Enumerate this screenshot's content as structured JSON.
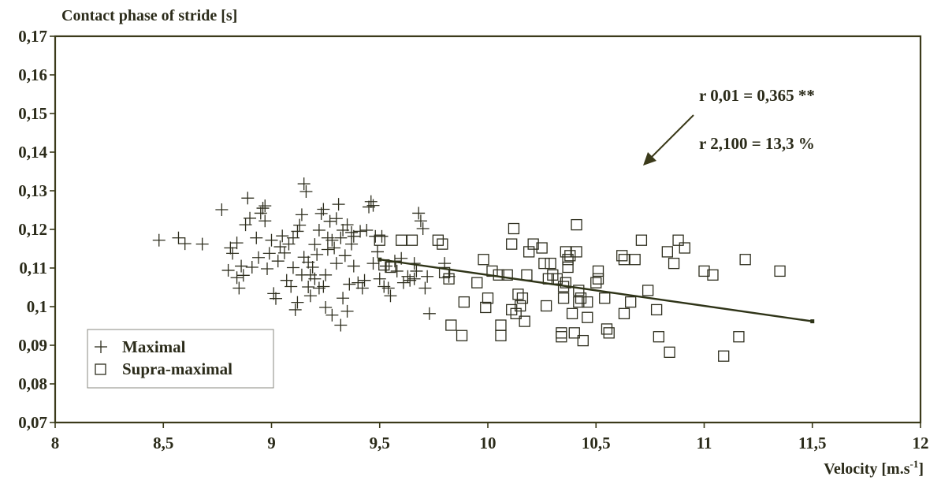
{
  "colors": {
    "frame": "#3b3a1a",
    "mark": "#2e2e1e",
    "trend": "#2f3418",
    "text": "#2b2b1a"
  },
  "chart_data": {
    "type": "scatter",
    "ylabel": "Contact phase of stride [s]",
    "xlabel_main": "Velocity [m.s",
    "xlabel_sup": "-1",
    "xlabel_end": "]",
    "xlim": [
      8,
      12
    ],
    "ylim": [
      0.07,
      0.17
    ],
    "x_ticks": [
      8,
      8.5,
      9,
      9.5,
      10,
      10.5,
      11,
      11.5,
      12
    ],
    "x_tick_labels": [
      "8",
      "8,5",
      "9",
      "9,5",
      "10",
      "10,5",
      "11",
      "11,5",
      "12"
    ],
    "y_ticks": [
      0.07,
      0.08,
      0.09,
      0.1,
      0.11,
      0.12,
      0.13,
      0.14,
      0.15,
      0.16,
      0.17
    ],
    "y_tick_labels": [
      "0,07",
      "0,08",
      "0,09",
      "0,1",
      "0,11",
      "0,12",
      "0,13",
      "0,14",
      "0,15",
      "0,16",
      "0,17"
    ],
    "grid": false,
    "legend_position": "bottom-left",
    "annotations": [
      "r 0,01 = 0,365 **",
      "r 2,100 = 13,3  %"
    ],
    "trend_line": {
      "x": [
        9.5,
        11.5
      ],
      "y": [
        0.1122,
        0.0962
      ]
    },
    "series": [
      {
        "name": "Maximal",
        "marker": "plus",
        "points": [
          [
            8.48,
            0.1172
          ],
          [
            8.57,
            0.1178
          ],
          [
            8.6,
            0.1163
          ],
          [
            8.68,
            0.1162
          ],
          [
            8.77,
            0.1251
          ],
          [
            8.8,
            0.1094
          ],
          [
            8.81,
            0.1152
          ],
          [
            8.82,
            0.1138
          ],
          [
            8.84,
            0.1165
          ],
          [
            8.84,
            0.1075
          ],
          [
            8.85,
            0.1048
          ],
          [
            8.86,
            0.1105
          ],
          [
            8.87,
            0.1081
          ],
          [
            8.88,
            0.1212
          ],
          [
            8.89,
            0.1281
          ],
          [
            8.9,
            0.1229
          ],
          [
            8.91,
            0.1102
          ],
          [
            8.93,
            0.1178
          ],
          [
            8.94,
            0.1127
          ],
          [
            8.95,
            0.1242
          ],
          [
            8.96,
            0.1255
          ],
          [
            8.97,
            0.1261
          ],
          [
            8.97,
            0.1222
          ],
          [
            8.98,
            0.1098
          ],
          [
            8.99,
            0.1138
          ],
          [
            9.0,
            0.1172
          ],
          [
            9.01,
            0.1034
          ],
          [
            9.02,
            0.1021
          ],
          [
            9.03,
            0.1118
          ],
          [
            9.04,
            0.1155
          ],
          [
            9.05,
            0.1183
          ],
          [
            9.06,
            0.1139
          ],
          [
            9.07,
            0.1068
          ],
          [
            9.08,
            0.1162
          ],
          [
            9.09,
            0.1052
          ],
          [
            9.1,
            0.1178
          ],
          [
            9.1,
            0.1101
          ],
          [
            9.11,
            0.0992
          ],
          [
            9.12,
            0.1011
          ],
          [
            9.12,
            0.1195
          ],
          [
            9.13,
            0.1211
          ],
          [
            9.14,
            0.1238
          ],
          [
            9.14,
            0.1082
          ],
          [
            9.15,
            0.1128
          ],
          [
            9.15,
            0.1318
          ],
          [
            9.16,
            0.1298
          ],
          [
            9.17,
            0.1115
          ],
          [
            9.17,
            0.1051
          ],
          [
            9.18,
            0.1082
          ],
          [
            9.18,
            0.1028
          ],
          [
            9.19,
            0.1102
          ],
          [
            9.2,
            0.1072
          ],
          [
            9.2,
            0.1161
          ],
          [
            9.21,
            0.1135
          ],
          [
            9.22,
            0.1048
          ],
          [
            9.22,
            0.1198
          ],
          [
            9.23,
            0.1241
          ],
          [
            9.24,
            0.1252
          ],
          [
            9.24,
            0.1052
          ],
          [
            9.25,
            0.1082
          ],
          [
            9.25,
            0.0998
          ],
          [
            9.26,
            0.1178
          ],
          [
            9.26,
            0.1148
          ],
          [
            9.27,
            0.1221
          ],
          [
            9.28,
            0.0978
          ],
          [
            9.28,
            0.1172
          ],
          [
            9.29,
            0.1152
          ],
          [
            9.3,
            0.1112
          ],
          [
            9.3,
            0.1228
          ],
          [
            9.31,
            0.1265
          ],
          [
            9.32,
            0.1178
          ],
          [
            9.32,
            0.0952
          ],
          [
            9.33,
            0.1022
          ],
          [
            9.33,
            0.1198
          ],
          [
            9.34,
            0.1132
          ],
          [
            9.35,
            0.1212
          ],
          [
            9.35,
            0.0988
          ],
          [
            9.36,
            0.1058
          ],
          [
            9.37,
            0.1162
          ],
          [
            9.37,
            0.1192
          ],
          [
            9.38,
            0.1182
          ],
          [
            9.38,
            0.1105
          ],
          [
            9.4,
            0.1062
          ],
          [
            9.41,
            0.1195
          ],
          [
            9.42,
            0.1048
          ],
          [
            9.43,
            0.1068
          ],
          [
            9.44,
            0.1198
          ],
          [
            9.45,
            0.1258
          ],
          [
            9.46,
            0.1272
          ],
          [
            9.47,
            0.1262
          ],
          [
            9.47,
            0.1112
          ],
          [
            9.48,
            0.1182
          ],
          [
            9.49,
            0.1142
          ],
          [
            9.5,
            0.1072
          ],
          [
            9.51,
            0.1182
          ],
          [
            9.52,
            0.1052
          ],
          [
            9.53,
            0.1105
          ],
          [
            9.54,
            0.1048
          ],
          [
            9.55,
            0.1028
          ],
          [
            9.57,
            0.1118
          ],
          [
            9.58,
            0.1092
          ],
          [
            9.6,
            0.1125
          ],
          [
            9.61,
            0.1062
          ],
          [
            9.63,
            0.1078
          ],
          [
            9.64,
            0.1068
          ],
          [
            9.66,
            0.1112
          ],
          [
            9.66,
            0.1072
          ],
          [
            9.67,
            0.1092
          ],
          [
            9.68,
            0.1242
          ],
          [
            9.69,
            0.1222
          ],
          [
            9.7,
            0.1202
          ],
          [
            9.71,
            0.1048
          ],
          [
            9.72,
            0.1078
          ],
          [
            9.73,
            0.0982
          ],
          [
            9.8,
            0.1112
          ],
          [
            9.82,
            0.1078
          ]
        ]
      },
      {
        "name": "Supra-maximal",
        "marker": "square",
        "points": [
          [
            9.5,
            0.1172
          ],
          [
            9.52,
            0.1108
          ],
          [
            9.55,
            0.1102
          ],
          [
            9.6,
            0.1172
          ],
          [
            9.65,
            0.1172
          ],
          [
            9.77,
            0.1172
          ],
          [
            9.79,
            0.1162
          ],
          [
            9.8,
            0.1088
          ],
          [
            9.82,
            0.1072
          ],
          [
            9.83,
            0.0952
          ],
          [
            9.88,
            0.0925
          ],
          [
            9.89,
            0.1012
          ],
          [
            9.95,
            0.1062
          ],
          [
            9.98,
            0.1122
          ],
          [
            9.99,
            0.0998
          ],
          [
            10.0,
            0.1022
          ],
          [
            10.02,
            0.1092
          ],
          [
            10.05,
            0.1082
          ],
          [
            10.06,
            0.0952
          ],
          [
            10.06,
            0.0925
          ],
          [
            10.09,
            0.1082
          ],
          [
            10.11,
            0.0992
          ],
          [
            10.11,
            0.1162
          ],
          [
            10.12,
            0.1202
          ],
          [
            10.13,
            0.0982
          ],
          [
            10.14,
            0.1032
          ],
          [
            10.15,
            0.1002
          ],
          [
            10.16,
            0.1022
          ],
          [
            10.17,
            0.0962
          ],
          [
            10.18,
            0.1082
          ],
          [
            10.19,
            0.1142
          ],
          [
            10.21,
            0.1162
          ],
          [
            10.25,
            0.1152
          ],
          [
            10.26,
            0.1112
          ],
          [
            10.27,
            0.1002
          ],
          [
            10.28,
            0.1072
          ],
          [
            10.29,
            0.1112
          ],
          [
            10.3,
            0.1082
          ],
          [
            10.32,
            0.1072
          ],
          [
            10.34,
            0.0932
          ],
          [
            10.34,
            0.0922
          ],
          [
            10.35,
            0.1022
          ],
          [
            10.35,
            0.1052
          ],
          [
            10.36,
            0.1062
          ],
          [
            10.36,
            0.1142
          ],
          [
            10.37,
            0.1122
          ],
          [
            10.37,
            0.1102
          ],
          [
            10.38,
            0.1132
          ],
          [
            10.39,
            0.0982
          ],
          [
            10.4,
            0.0932
          ],
          [
            10.41,
            0.1212
          ],
          [
            10.41,
            0.1142
          ],
          [
            10.42,
            0.1012
          ],
          [
            10.42,
            0.1042
          ],
          [
            10.43,
            0.1022
          ],
          [
            10.44,
            0.0912
          ],
          [
            10.46,
            0.1012
          ],
          [
            10.46,
            0.0972
          ],
          [
            10.5,
            0.1062
          ],
          [
            10.51,
            0.1092
          ],
          [
            10.51,
            0.1072
          ],
          [
            10.54,
            0.1022
          ],
          [
            10.55,
            0.0942
          ],
          [
            10.56,
            0.0932
          ],
          [
            10.62,
            0.1132
          ],
          [
            10.63,
            0.1122
          ],
          [
            10.63,
            0.0982
          ],
          [
            10.66,
            0.1012
          ],
          [
            10.68,
            0.1122
          ],
          [
            10.71,
            0.1172
          ],
          [
            10.74,
            0.1042
          ],
          [
            10.78,
            0.0992
          ],
          [
            10.79,
            0.0922
          ],
          [
            10.83,
            0.1142
          ],
          [
            10.84,
            0.0882
          ],
          [
            10.86,
            0.1112
          ],
          [
            10.88,
            0.1172
          ],
          [
            10.91,
            0.1152
          ],
          [
            11.0,
            0.1092
          ],
          [
            11.04,
            0.1082
          ],
          [
            11.09,
            0.0872
          ],
          [
            11.16,
            0.0922
          ],
          [
            11.19,
            0.1122
          ],
          [
            11.35,
            0.1092
          ]
        ]
      }
    ]
  }
}
